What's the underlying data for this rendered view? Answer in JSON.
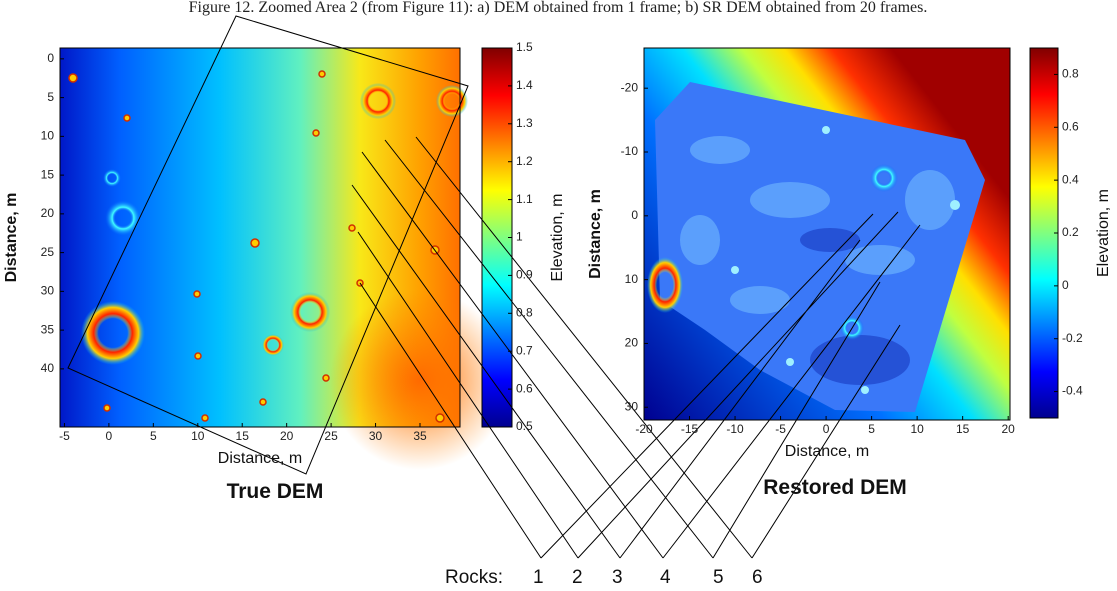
{
  "caption": "Figure 12. Zoomed Area 2 (from Figure 11): a) DEM obtained from 1 frame; b) SR DEM obtained from 20 frames.",
  "panels": [
    {
      "title": "True DEM",
      "x_label": "Distance, m",
      "y_label": "Distance, m",
      "xlim": [
        -5.5,
        39.5
      ],
      "xticks": [
        -5,
        0,
        5,
        10,
        15,
        20,
        25,
        30,
        35
      ],
      "ylim": [
        -1.4,
        47.5
      ],
      "yticks": [
        0,
        5,
        10,
        15,
        20,
        25,
        30,
        35,
        40
      ],
      "colorbar": {
        "label": "Elevation, m",
        "lim": [
          0.5,
          1.5
        ],
        "ticks": [
          0.5,
          0.6,
          0.7,
          0.8,
          0.9,
          1,
          1.1,
          1.2,
          1.3,
          1.4,
          1.5
        ]
      }
    },
    {
      "title": "Restored DEM",
      "x_label": "Distance, m",
      "y_label": "Distance, m",
      "xlim": [
        -20,
        20.2
      ],
      "xticks": [
        -20,
        -15,
        -10,
        -5,
        0,
        5,
        10,
        15,
        20
      ],
      "ylim": [
        -26.3,
        32
      ],
      "yticks": [
        -20,
        -10,
        0,
        10,
        20,
        30
      ],
      "colorbar": {
        "label": "Elevation, m",
        "lim": [
          -0.5,
          0.9
        ],
        "ticks": [
          -0.4,
          -0.2,
          0,
          0.2,
          0.4,
          0.6,
          0.8
        ]
      }
    }
  ],
  "rocks_label": "Rocks:",
  "rocks": [
    "1",
    "2",
    "3",
    "4",
    "5",
    "6"
  ]
}
